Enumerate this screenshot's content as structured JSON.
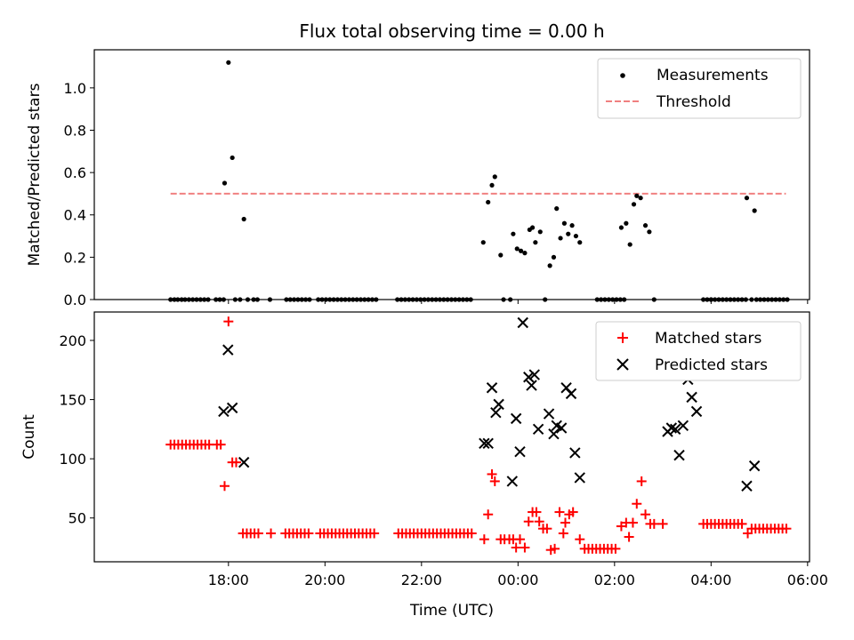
{
  "chart_data": {
    "type": "scatter",
    "title": "Flux total observing time = 0.00 h",
    "xlabel": "Time (UTC)",
    "x_unit_note": "hours after 16:00 UTC",
    "xlim": [
      -0.78,
      14.04
    ],
    "xticks": [
      2,
      4,
      6,
      8,
      10,
      12,
      14
    ],
    "xtick_labels": [
      "18:00",
      "20:00",
      "22:00",
      "00:00",
      "02:00",
      "04:00",
      "06:00"
    ],
    "colors": {
      "measurements": "#000000",
      "threshold": "#f08080",
      "matched": "#ff0000",
      "predicted": "#000000"
    },
    "top_panel": {
      "ylabel": "Matched/Predicted stars",
      "ylim": [
        0,
        1.18
      ],
      "yticks": [
        0.0,
        0.2,
        0.4,
        0.6,
        0.8,
        1.0
      ],
      "ytick_labels": [
        "0.0",
        "0.2",
        "0.4",
        "0.6",
        "0.8",
        "1.0"
      ],
      "legend": {
        "position": "top-right",
        "entries": [
          "Measurements",
          "Threshold"
        ]
      },
      "threshold": {
        "name": "Threshold",
        "value": 0.5,
        "x_range": [
          0.8,
          13.55
        ]
      },
      "measurements": {
        "name": "Measurements",
        "points": [
          [
            0.8,
            0
          ],
          [
            0.88,
            0
          ],
          [
            0.95,
            0
          ],
          [
            1.03,
            0
          ],
          [
            1.1,
            0
          ],
          [
            1.18,
            0
          ],
          [
            1.26,
            0
          ],
          [
            1.34,
            0
          ],
          [
            1.42,
            0
          ],
          [
            1.5,
            0
          ],
          [
            1.58,
            0
          ],
          [
            1.74,
            0
          ],
          [
            1.82,
            0
          ],
          [
            1.9,
            0
          ],
          [
            1.92,
            0.55
          ],
          [
            2.0,
            1.12
          ],
          [
            2.08,
            0.67
          ],
          [
            2.14,
            0
          ],
          [
            2.24,
            0
          ],
          [
            2.32,
            0.38
          ],
          [
            2.4,
            0
          ],
          [
            2.52,
            0
          ],
          [
            2.6,
            0
          ],
          [
            2.86,
            0
          ],
          [
            3.2,
            0
          ],
          [
            3.28,
            0
          ],
          [
            3.36,
            0
          ],
          [
            3.44,
            0
          ],
          [
            3.52,
            0
          ],
          [
            3.6,
            0
          ],
          [
            3.68,
            0
          ],
          [
            3.86,
            0
          ],
          [
            3.94,
            0
          ],
          [
            4.02,
            0
          ],
          [
            4.1,
            0
          ],
          [
            4.18,
            0
          ],
          [
            4.26,
            0
          ],
          [
            4.34,
            0
          ],
          [
            4.42,
            0
          ],
          [
            4.5,
            0
          ],
          [
            4.58,
            0
          ],
          [
            4.66,
            0
          ],
          [
            4.74,
            0
          ],
          [
            4.82,
            0
          ],
          [
            4.9,
            0
          ],
          [
            4.98,
            0
          ],
          [
            5.06,
            0
          ],
          [
            5.5,
            0
          ],
          [
            5.58,
            0
          ],
          [
            5.66,
            0
          ],
          [
            5.74,
            0
          ],
          [
            5.82,
            0
          ],
          [
            5.9,
            0
          ],
          [
            5.98,
            0
          ],
          [
            6.06,
            0
          ],
          [
            6.14,
            0
          ],
          [
            6.22,
            0
          ],
          [
            6.3,
            0
          ],
          [
            6.38,
            0
          ],
          [
            6.46,
            0
          ],
          [
            6.54,
            0
          ],
          [
            6.62,
            0
          ],
          [
            6.7,
            0
          ],
          [
            6.78,
            0
          ],
          [
            6.86,
            0
          ],
          [
            6.94,
            0
          ],
          [
            7.02,
            0
          ],
          [
            7.28,
            0.27
          ],
          [
            7.38,
            0.46
          ],
          [
            7.46,
            0.54
          ],
          [
            7.52,
            0.58
          ],
          [
            7.64,
            0.21
          ],
          [
            7.7,
            0
          ],
          [
            7.84,
            0
          ],
          [
            7.9,
            0.31
          ],
          [
            7.98,
            0.24
          ],
          [
            8.06,
            0.23
          ],
          [
            8.14,
            0.22
          ],
          [
            8.24,
            0.33
          ],
          [
            8.3,
            0.34
          ],
          [
            8.36,
            0.27
          ],
          [
            8.46,
            0.32
          ],
          [
            8.56,
            0
          ],
          [
            8.66,
            0.16
          ],
          [
            8.74,
            0.2
          ],
          [
            8.8,
            0.43
          ],
          [
            8.88,
            0.29
          ],
          [
            8.96,
            0.36
          ],
          [
            9.04,
            0.31
          ],
          [
            9.12,
            0.35
          ],
          [
            9.2,
            0.3
          ],
          [
            9.28,
            0.27
          ],
          [
            9.64,
            0
          ],
          [
            9.72,
            0
          ],
          [
            9.8,
            0
          ],
          [
            9.88,
            0
          ],
          [
            9.96,
            0
          ],
          [
            10.04,
            0
          ],
          [
            10.12,
            0
          ],
          [
            10.2,
            0
          ],
          [
            10.14,
            0.34
          ],
          [
            10.24,
            0.36
          ],
          [
            10.32,
            0.26
          ],
          [
            10.4,
            0.45
          ],
          [
            10.46,
            0.49
          ],
          [
            10.54,
            0.48
          ],
          [
            10.64,
            0.35
          ],
          [
            10.72,
            0.32
          ],
          [
            10.82,
            0
          ],
          [
            12.0,
            0
          ],
          [
            11.84,
            0
          ],
          [
            11.92,
            0
          ],
          [
            12.0,
            0
          ],
          [
            12.08,
            0
          ],
          [
            12.16,
            0
          ],
          [
            12.24,
            0
          ],
          [
            12.32,
            0
          ],
          [
            12.4,
            0
          ],
          [
            12.48,
            0
          ],
          [
            12.56,
            0
          ],
          [
            12.64,
            0
          ],
          [
            12.72,
            0
          ],
          [
            12.74,
            0.48
          ],
          [
            12.9,
            0.42
          ],
          [
            12.84,
            0
          ],
          [
            12.94,
            0
          ],
          [
            13.02,
            0
          ],
          [
            13.1,
            0
          ],
          [
            13.18,
            0
          ],
          [
            13.26,
            0
          ],
          [
            13.34,
            0
          ],
          [
            13.42,
            0
          ],
          [
            13.5,
            0
          ],
          [
            13.58,
            0
          ]
        ]
      }
    },
    "bottom_panel": {
      "ylabel": "Count",
      "ylim": [
        13,
        224
      ],
      "yticks": [
        50,
        100,
        150,
        200
      ],
      "ytick_labels": [
        "50",
        "100",
        "150",
        "200"
      ],
      "legend": {
        "position": "top-right",
        "entries": [
          "Matched stars",
          "Predicted stars"
        ]
      },
      "matched": {
        "name": "Matched stars",
        "points": [
          [
            0.8,
            112
          ],
          [
            0.88,
            112
          ],
          [
            0.96,
            112
          ],
          [
            1.04,
            112
          ],
          [
            1.12,
            112
          ],
          [
            1.2,
            112
          ],
          [
            1.28,
            112
          ],
          [
            1.36,
            112
          ],
          [
            1.44,
            112
          ],
          [
            1.52,
            112
          ],
          [
            1.6,
            112
          ],
          [
            1.76,
            112
          ],
          [
            1.84,
            112
          ],
          [
            1.92,
            77
          ],
          [
            2.0,
            216
          ],
          [
            2.08,
            97
          ],
          [
            2.16,
            97
          ],
          [
            2.3,
            37
          ],
          [
            2.38,
            37
          ],
          [
            2.46,
            37
          ],
          [
            2.54,
            37
          ],
          [
            2.62,
            37
          ],
          [
            2.88,
            37
          ],
          [
            3.18,
            37
          ],
          [
            3.26,
            37
          ],
          [
            3.34,
            37
          ],
          [
            3.42,
            37
          ],
          [
            3.5,
            37
          ],
          [
            3.58,
            37
          ],
          [
            3.66,
            37
          ],
          [
            3.9,
            37
          ],
          [
            3.98,
            37
          ],
          [
            4.06,
            37
          ],
          [
            4.14,
            37
          ],
          [
            4.22,
            37
          ],
          [
            4.3,
            37
          ],
          [
            4.38,
            37
          ],
          [
            4.46,
            37
          ],
          [
            4.54,
            37
          ],
          [
            4.62,
            37
          ],
          [
            4.7,
            37
          ],
          [
            4.78,
            37
          ],
          [
            4.86,
            37
          ],
          [
            4.94,
            37
          ],
          [
            5.02,
            37
          ],
          [
            5.52,
            37
          ],
          [
            5.6,
            37
          ],
          [
            5.68,
            37
          ],
          [
            5.76,
            37
          ],
          [
            5.84,
            37
          ],
          [
            5.92,
            37
          ],
          [
            6.0,
            37
          ],
          [
            6.08,
            37
          ],
          [
            6.16,
            37
          ],
          [
            6.24,
            37
          ],
          [
            6.32,
            37
          ],
          [
            6.4,
            37
          ],
          [
            6.48,
            37
          ],
          [
            6.56,
            37
          ],
          [
            6.64,
            37
          ],
          [
            6.72,
            37
          ],
          [
            6.8,
            37
          ],
          [
            6.88,
            37
          ],
          [
            6.96,
            37
          ],
          [
            7.04,
            37
          ],
          [
            7.3,
            32
          ],
          [
            7.38,
            53
          ],
          [
            7.46,
            87
          ],
          [
            7.52,
            81
          ],
          [
            7.64,
            32
          ],
          [
            7.72,
            32
          ],
          [
            7.82,
            32
          ],
          [
            7.9,
            32
          ],
          [
            7.96,
            25
          ],
          [
            8.04,
            32
          ],
          [
            8.14,
            25
          ],
          [
            8.22,
            47
          ],
          [
            8.3,
            55
          ],
          [
            8.38,
            55
          ],
          [
            8.44,
            47
          ],
          [
            8.52,
            41
          ],
          [
            8.6,
            41
          ],
          [
            8.68,
            23
          ],
          [
            8.76,
            24
          ],
          [
            8.86,
            55
          ],
          [
            8.94,
            37
          ],
          [
            8.98,
            46
          ],
          [
            9.06,
            53
          ],
          [
            9.14,
            55
          ],
          [
            9.28,
            32
          ],
          [
            9.38,
            24
          ],
          [
            9.46,
            24
          ],
          [
            9.54,
            24
          ],
          [
            9.62,
            24
          ],
          [
            9.7,
            24
          ],
          [
            9.78,
            24
          ],
          [
            9.86,
            24
          ],
          [
            9.94,
            24
          ],
          [
            10.02,
            24
          ],
          [
            10.14,
            43
          ],
          [
            10.24,
            46
          ],
          [
            10.3,
            34
          ],
          [
            10.38,
            46
          ],
          [
            10.46,
            62
          ],
          [
            10.56,
            81
          ],
          [
            10.64,
            53
          ],
          [
            10.74,
            45
          ],
          [
            10.82,
            45
          ],
          [
            11.0,
            45
          ],
          [
            11.84,
            45
          ],
          [
            11.92,
            45
          ],
          [
            12.0,
            45
          ],
          [
            12.08,
            45
          ],
          [
            12.16,
            45
          ],
          [
            12.24,
            45
          ],
          [
            12.32,
            45
          ],
          [
            12.4,
            45
          ],
          [
            12.48,
            45
          ],
          [
            12.56,
            45
          ],
          [
            12.64,
            45
          ],
          [
            12.76,
            37
          ],
          [
            12.84,
            41
          ],
          [
            12.92,
            41
          ],
          [
            13.0,
            41
          ],
          [
            13.08,
            41
          ],
          [
            13.16,
            41
          ],
          [
            13.24,
            41
          ],
          [
            13.32,
            41
          ],
          [
            13.4,
            41
          ],
          [
            13.48,
            41
          ],
          [
            13.56,
            41
          ]
        ]
      },
      "predicted": {
        "name": "Predicted stars",
        "points": [
          [
            1.9,
            140
          ],
          [
            1.99,
            192
          ],
          [
            2.08,
            143
          ],
          [
            2.32,
            97
          ],
          [
            7.3,
            113
          ],
          [
            7.38,
            113
          ],
          [
            7.46,
            160
          ],
          [
            7.54,
            139
          ],
          [
            7.6,
            146
          ],
          [
            7.88,
            81
          ],
          [
            7.96,
            134
          ],
          [
            8.04,
            106
          ],
          [
            8.1,
            215
          ],
          [
            8.22,
            169
          ],
          [
            8.28,
            162
          ],
          [
            8.34,
            171
          ],
          [
            8.42,
            125
          ],
          [
            8.64,
            138
          ],
          [
            8.74,
            121
          ],
          [
            8.8,
            128
          ],
          [
            8.9,
            126
          ],
          [
            9.0,
            160
          ],
          [
            9.1,
            155
          ],
          [
            9.18,
            105
          ],
          [
            9.28,
            84
          ],
          [
            11.1,
            123
          ],
          [
            11.18,
            126
          ],
          [
            11.26,
            125
          ],
          [
            11.34,
            103
          ],
          [
            11.42,
            128
          ],
          [
            11.52,
            167
          ],
          [
            11.6,
            152
          ],
          [
            11.7,
            140
          ],
          [
            12.74,
            77
          ],
          [
            12.9,
            94
          ]
        ]
      }
    }
  }
}
